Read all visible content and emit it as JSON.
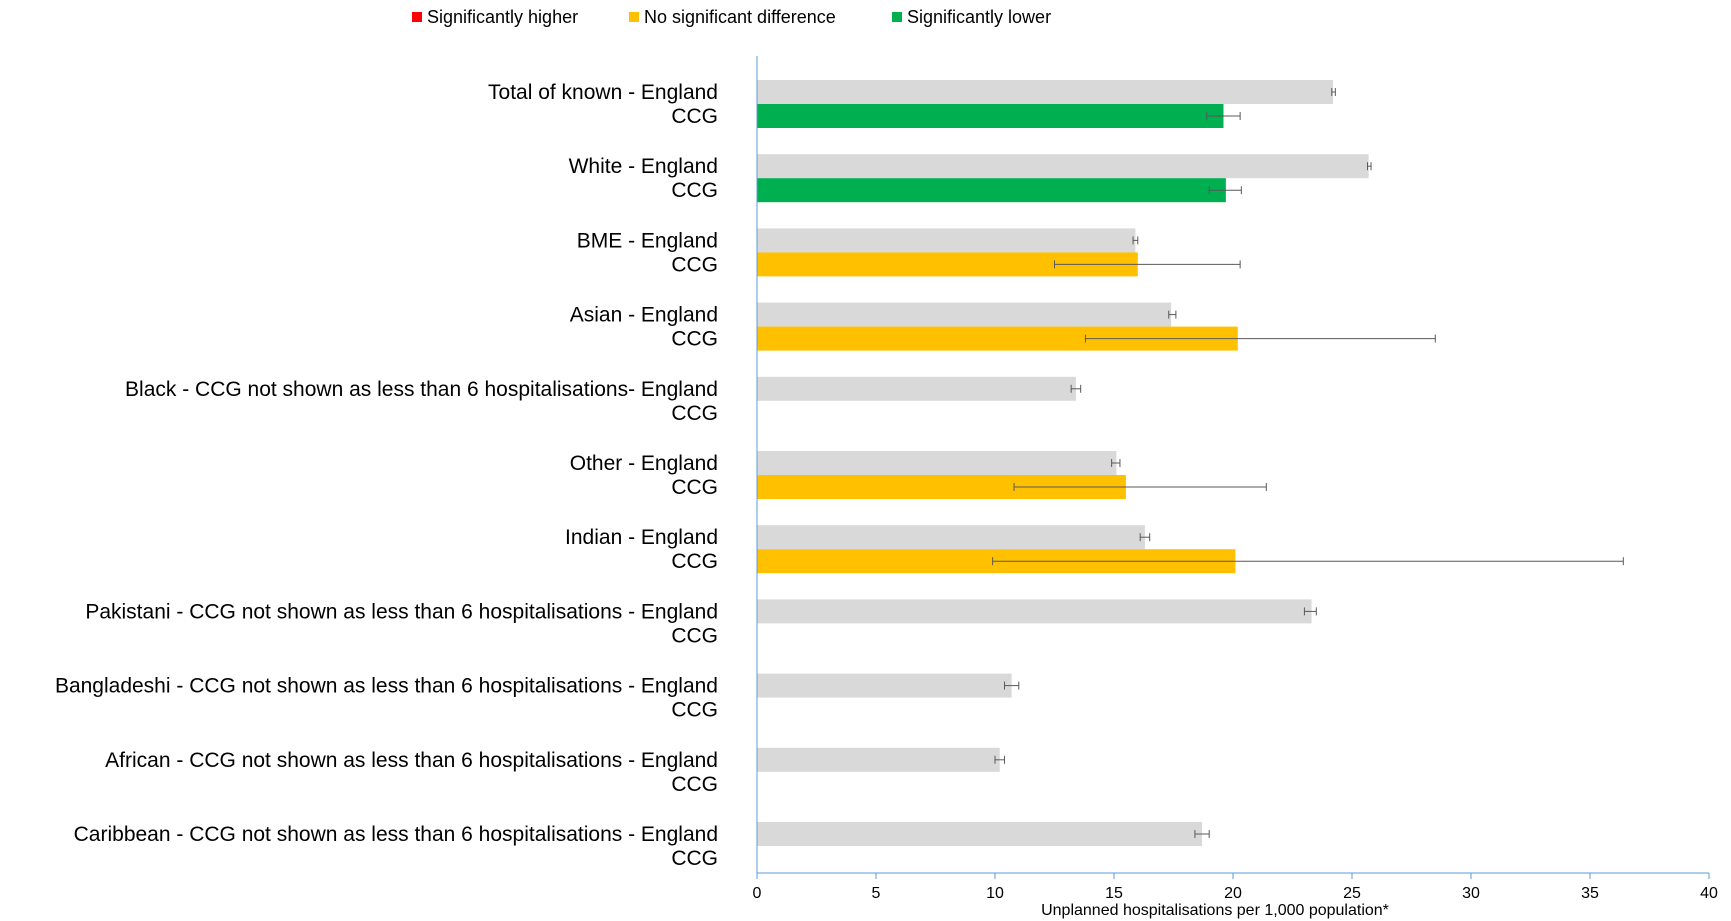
{
  "chart_data": {
    "type": "bar",
    "orientation": "horizontal",
    "grid": false,
    "legend_position": "top",
    "legend": [
      {
        "name": "Significantly higher",
        "color": "#ff0000"
      },
      {
        "name": "No significant difference",
        "color": "#ffc000"
      },
      {
        "name": "Significantly lower",
        "color": "#00b050"
      }
    ],
    "england_color": "#d9d9d9",
    "xlabel": "Unplanned hospitalisations per 1,000 population*",
    "ylabel": "",
    "xlim": [
      0,
      40
    ],
    "xticks": [
      "0",
      "5",
      "10",
      "15",
      "20",
      "25",
      "30",
      "35",
      "40"
    ],
    "categories": [
      {
        "label1": "Total of known - England",
        "label2": "CCG",
        "england": {
          "value": 24.2,
          "ci": [
            24.15,
            24.3
          ]
        },
        "ccg": {
          "value": 19.6,
          "ci": [
            18.9,
            20.3
          ],
          "significance": "lower"
        }
      },
      {
        "label1": "White - England",
        "label2": "CCG",
        "england": {
          "value": 25.7,
          "ci": [
            25.65,
            25.8
          ]
        },
        "ccg": {
          "value": 19.7,
          "ci": [
            19.0,
            20.35
          ],
          "significance": "lower"
        }
      },
      {
        "label1": "BME - England",
        "label2": "CCG",
        "england": {
          "value": 15.9,
          "ci": [
            15.8,
            16.0
          ]
        },
        "ccg": {
          "value": 16.0,
          "ci": [
            12.5,
            20.3
          ],
          "significance": "none"
        }
      },
      {
        "label1": "Asian - England",
        "label2": "CCG",
        "england": {
          "value": 17.4,
          "ci": [
            17.3,
            17.6
          ]
        },
        "ccg": {
          "value": 20.2,
          "ci": [
            13.8,
            28.5
          ],
          "significance": "none"
        }
      },
      {
        "label1": "Black - CCG not shown as less than 6 hospitalisations- England",
        "label2": "CCG",
        "england": {
          "value": 13.4,
          "ci": [
            13.2,
            13.6
          ]
        },
        "ccg": null
      },
      {
        "label1": "Other - England",
        "label2": "CCG",
        "england": {
          "value": 15.1,
          "ci": [
            14.9,
            15.25
          ]
        },
        "ccg": {
          "value": 15.5,
          "ci": [
            10.8,
            21.4
          ],
          "significance": "none"
        }
      },
      {
        "label1": "Indian - England",
        "label2": "CCG",
        "england": {
          "value": 16.3,
          "ci": [
            16.1,
            16.5
          ]
        },
        "ccg": {
          "value": 20.1,
          "ci": [
            9.9,
            36.4
          ],
          "significance": "none"
        }
      },
      {
        "label1": "Pakistani - CCG not shown as less than 6 hospitalisations - England",
        "label2": "CCG",
        "england": {
          "value": 23.3,
          "ci": [
            23.0,
            23.5
          ]
        },
        "ccg": null
      },
      {
        "label1": "Bangladeshi - CCG not shown as less than 6 hospitalisations - England",
        "label2": "CCG",
        "england": {
          "value": 10.7,
          "ci": [
            10.4,
            11.0
          ]
        },
        "ccg": null
      },
      {
        "label1": "African - CCG not shown as less than 6 hospitalisations - England",
        "label2": "CCG",
        "england": {
          "value": 10.2,
          "ci": [
            10.0,
            10.4
          ]
        },
        "ccg": null
      },
      {
        "label1": "Caribbean - CCG not shown as less than 6 hospitalisations - England",
        "label2": "CCG",
        "england": {
          "value": 18.7,
          "ci": [
            18.4,
            19.0
          ]
        },
        "ccg": null
      }
    ]
  }
}
